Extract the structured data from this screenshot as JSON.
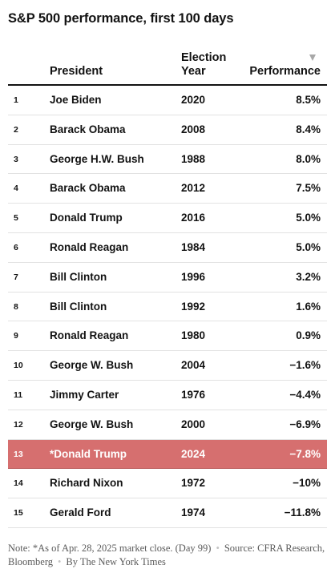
{
  "title": "S&P 500 performance, first 100 days",
  "columns": {
    "president": "President",
    "year_line1": "Election",
    "year_line2": "Year",
    "performance": "Performance"
  },
  "sort_icon": "triangle-down-icon",
  "highlight_color": "#d66f6f",
  "chart_data": {
    "type": "table",
    "columns": [
      "",
      "President",
      "Election Year",
      "Performance"
    ],
    "rows": [
      {
        "rank": "1",
        "president": "Joe Biden",
        "year": "2020",
        "performance": "8.5%",
        "highlight": false
      },
      {
        "rank": "2",
        "president": "Barack Obama",
        "year": "2008",
        "performance": "8.4%",
        "highlight": false
      },
      {
        "rank": "3",
        "president": "George H.W. Bush",
        "year": "1988",
        "performance": "8.0%",
        "highlight": false
      },
      {
        "rank": "4",
        "president": "Barack Obama",
        "year": "2012",
        "performance": "7.5%",
        "highlight": false
      },
      {
        "rank": "5",
        "president": "Donald Trump",
        "year": "2016",
        "performance": "5.0%",
        "highlight": false
      },
      {
        "rank": "6",
        "president": "Ronald Reagan",
        "year": "1984",
        "performance": "5.0%",
        "highlight": false
      },
      {
        "rank": "7",
        "president": "Bill Clinton",
        "year": "1996",
        "performance": "3.2%",
        "highlight": false
      },
      {
        "rank": "8",
        "president": "Bill Clinton",
        "year": "1992",
        "performance": "1.6%",
        "highlight": false
      },
      {
        "rank": "9",
        "president": "Ronald Reagan",
        "year": "1980",
        "performance": "0.9%",
        "highlight": false
      },
      {
        "rank": "10",
        "president": "George W. Bush",
        "year": "2004",
        "performance": "−1.6%",
        "highlight": false
      },
      {
        "rank": "11",
        "president": "Jimmy Carter",
        "year": "1976",
        "performance": "−4.4%",
        "highlight": false
      },
      {
        "rank": "12",
        "president": "George W. Bush",
        "year": "2000",
        "performance": "−6.9%",
        "highlight": false
      },
      {
        "rank": "13",
        "president": "*Donald Trump",
        "year": "2024",
        "performance": "−7.8%",
        "highlight": true
      },
      {
        "rank": "14",
        "president": "Richard Nixon",
        "year": "1972",
        "performance": "−10%",
        "highlight": false
      },
      {
        "rank": "15",
        "president": "Gerald Ford",
        "year": "1974",
        "performance": "−11.8%",
        "highlight": false
      }
    ]
  },
  "footer": {
    "note": "Note: *As of Apr. 28, 2025 market close. (Day 99)",
    "source": "Source: CFRA Research, Bloomberg",
    "credit": "By The New York Times",
    "separator": "•"
  }
}
